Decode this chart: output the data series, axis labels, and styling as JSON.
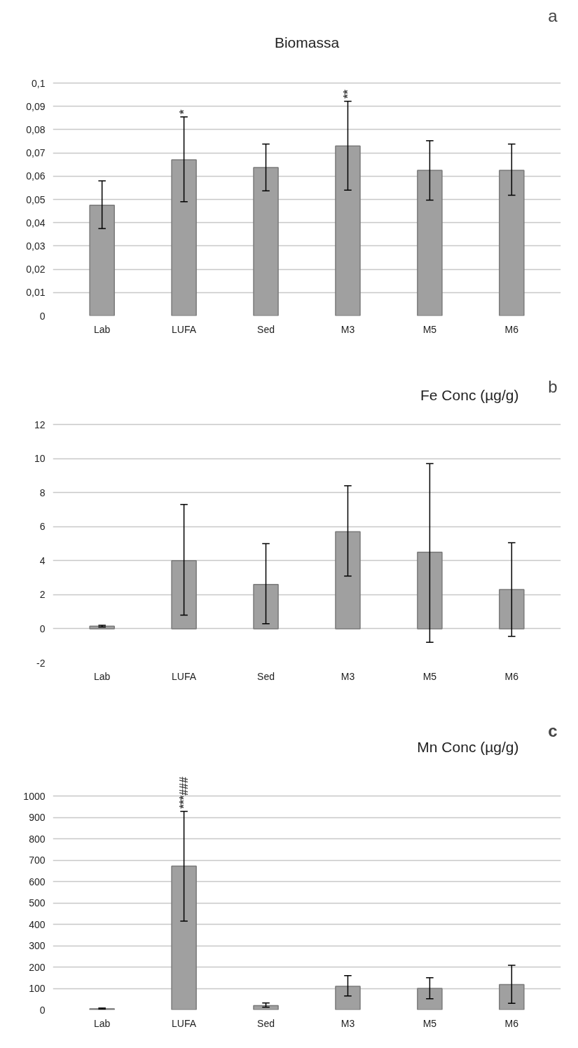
{
  "chart_data": [
    {
      "type": "bar",
      "title": "Biomassa",
      "categories": [
        "Lab",
        "LUFA",
        "Sed",
        "M3",
        "M5",
        "M6"
      ],
      "values": [
        0.0475,
        0.067,
        0.0637,
        0.073,
        0.0625,
        0.0625
      ],
      "errors": [
        [
          0.0375,
          0.058
        ],
        [
          0.049,
          0.0855
        ],
        [
          0.0537,
          0.0738
        ],
        [
          0.054,
          0.0922
        ],
        [
          0.0497,
          0.0752
        ],
        [
          0.0518,
          0.0738
        ]
      ],
      "color": "#a0a0a0",
      "ylim": [
        0,
        0.1
      ],
      "yticks": [
        0,
        {
          "value": 0.01,
          "label": "0,01"
        },
        {
          "value": 0.02,
          "label": "0,02"
        },
        {
          "value": 0.03,
          "label": "0,03"
        },
        {
          "value": 0.04,
          "label": "0,04"
        },
        {
          "value": 0.05,
          "label": "0,05"
        },
        {
          "value": 0.06,
          "label": "0,06"
        },
        {
          "value": 0.07,
          "label": "0,07"
        },
        {
          "value": 0.08,
          "label": "0,08"
        },
        {
          "value": 0.09,
          "label": "0,09"
        },
        {
          "value": 0.1,
          "label": "0,1"
        }
      ],
      "grid": "y",
      "annotations": [
        "a",
        {
          "text": "*",
          "x": "LUFA",
          "y": 0.0855
        },
        {
          "text": "**",
          "x": "M3",
          "y": 0.0922
        }
      ]
    },
    {
      "type": "bar",
      "title": "Fe Conc (µg/g)",
      "categories": [
        "Lab",
        "LUFA",
        "Sed",
        "M3",
        "M5",
        "M6"
      ],
      "values": [
        0.15,
        4.0,
        2.6,
        5.7,
        4.5,
        2.3
      ],
      "errors": [
        [
          0.1,
          0.2
        ],
        [
          0.8,
          7.3
        ],
        [
          0.3,
          5.0
        ],
        [
          3.1,
          8.4
        ],
        [
          -0.8,
          9.7
        ],
        [
          -0.45,
          5.05
        ]
      ],
      "color": "#a0a0a0",
      "ylim": [
        -2,
        12
      ],
      "yticks": [
        -2,
        0,
        2,
        4,
        6,
        8,
        10,
        12
      ],
      "grid": "y",
      "annotations": [
        "b"
      ]
    },
    {
      "type": "bar",
      "title": "Mn Conc (µg/g)",
      "categories": [
        "Lab",
        "LUFA",
        "Sed",
        "M3",
        "M5",
        "M6"
      ],
      "values": [
        5,
        672,
        20,
        110,
        100,
        118
      ],
      "errors": [
        [
          3,
          8
        ],
        [
          415,
          928
        ],
        [
          12,
          32
        ],
        [
          65,
          160
        ],
        [
          52,
          150
        ],
        [
          30,
          208
        ]
      ],
      "color": "#a0a0a0",
      "ylim": [
        0,
        1000
      ],
      "yticks": [
        0,
        100,
        200,
        300,
        400,
        500,
        600,
        700,
        800,
        900,
        1000
      ],
      "grid": "y",
      "annotations": [
        "c",
        {
          "text": "***###",
          "x": "LUFA",
          "y": 928
        }
      ]
    }
  ]
}
